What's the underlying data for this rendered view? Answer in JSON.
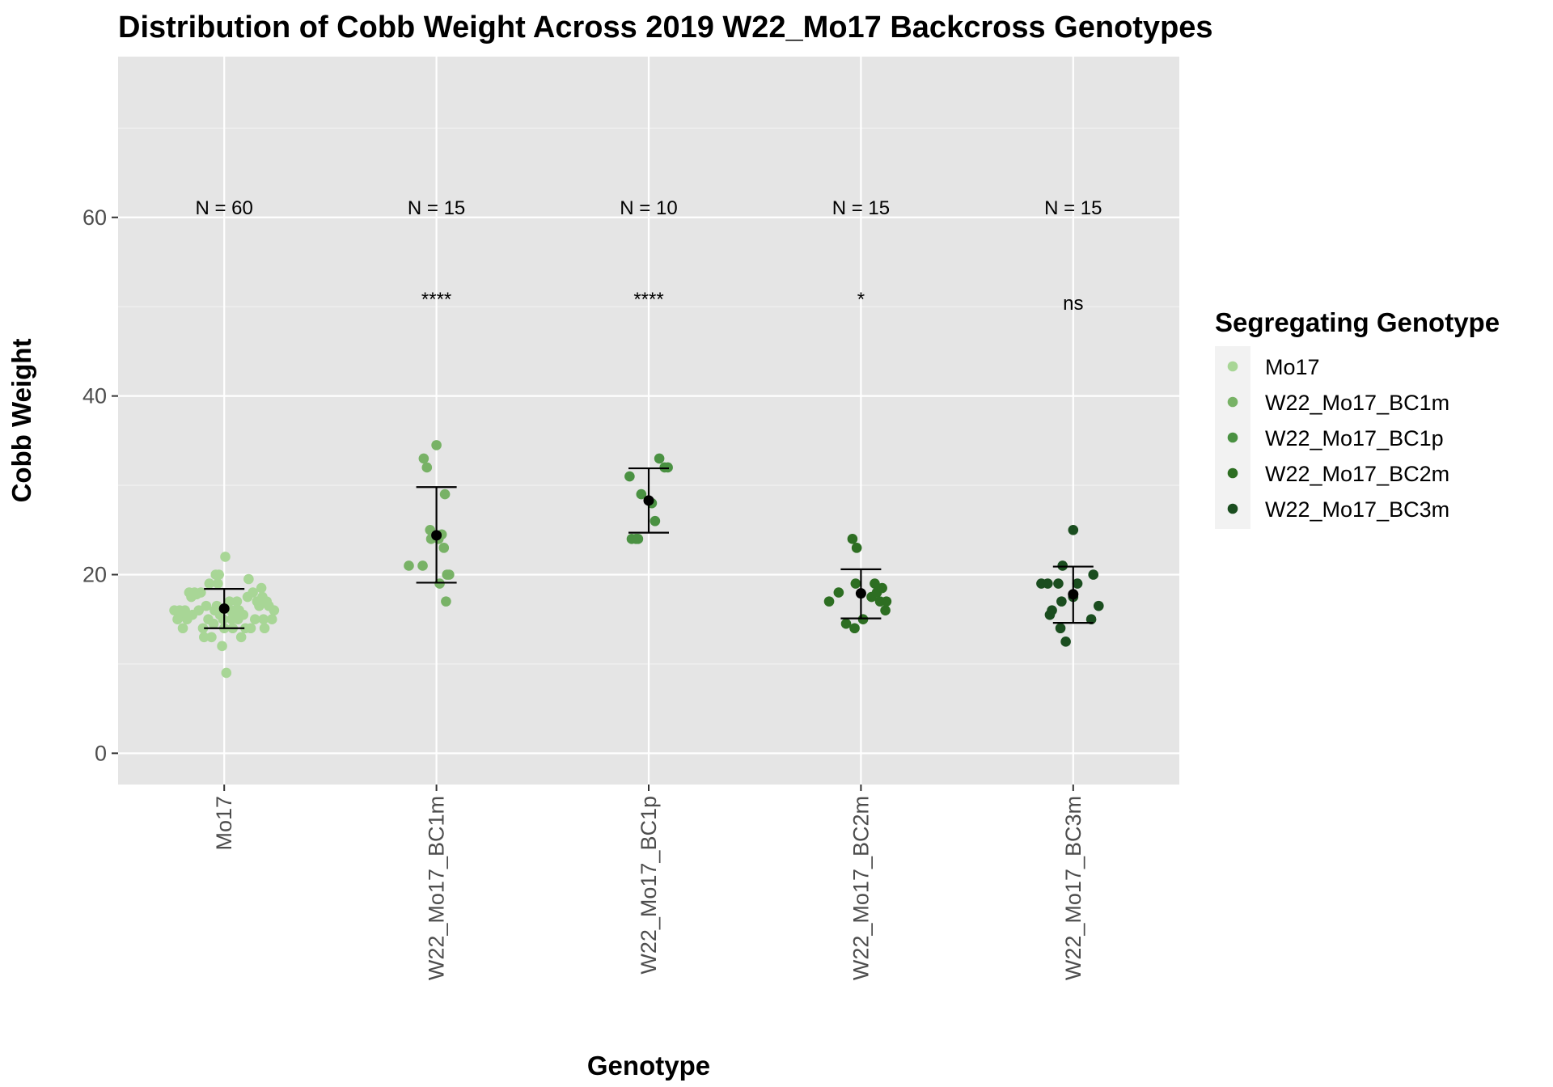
{
  "chart_data": {
    "type": "scatter",
    "title": "Distribution of Cobb Weight Across 2019 W22_Mo17 Backcross Genotypes",
    "xlabel": "Genotype",
    "ylabel": "Cobb Weight",
    "ylim": [
      -3.5,
      78
    ],
    "yticks": [
      0,
      20,
      40,
      60
    ],
    "grid": true,
    "legend": {
      "title": "Segregating Genotype",
      "position": "right",
      "entries": [
        "Mo17",
        "W22_Mo17_BC1m",
        "W22_Mo17_BC1p",
        "W22_Mo17_BC2m",
        "W22_Mo17_BC3m"
      ]
    },
    "categories": [
      "Mo17",
      "W22_Mo17_BC1m",
      "W22_Mo17_BC1p",
      "W22_Mo17_BC2m",
      "W22_Mo17_BC3m"
    ],
    "series": [
      {
        "name": "Mo17",
        "color": "#a8d696",
        "n_label": "N = 60",
        "significance": "",
        "mean": 16.2,
        "error": [
          14.0,
          18.4
        ],
        "points": [
          [
            -0.47,
            16.0
          ],
          [
            -0.44,
            15.0
          ],
          [
            -0.42,
            16.0
          ],
          [
            -0.4,
            15.5
          ],
          [
            -0.39,
            14.0
          ],
          [
            -0.37,
            16.0
          ],
          [
            -0.35,
            15.0
          ],
          [
            -0.33,
            18.0
          ],
          [
            -0.31,
            17.5
          ],
          [
            -0.3,
            15.5
          ],
          [
            -0.28,
            18.0
          ],
          [
            -0.26,
            17.8
          ],
          [
            -0.24,
            16.0
          ],
          [
            -0.22,
            18.0
          ],
          [
            -0.2,
            14.0
          ],
          [
            -0.19,
            13.0
          ],
          [
            -0.17,
            16.5
          ],
          [
            -0.15,
            15.0
          ],
          [
            -0.14,
            19.0
          ],
          [
            -0.12,
            13.0
          ],
          [
            -0.1,
            14.5
          ],
          [
            -0.09,
            16.0
          ],
          [
            -0.08,
            20.0
          ],
          [
            -0.07,
            16.5
          ],
          [
            -0.06,
            19.0
          ],
          [
            -0.05,
            20.0
          ],
          [
            -0.04,
            15.5
          ],
          [
            -0.03,
            16.0
          ],
          [
            -0.02,
            12.0
          ],
          [
            -0.01,
            15.0
          ],
          [
            0.0,
            14.0
          ],
          [
            0.01,
            22.0
          ],
          [
            0.02,
            9.0
          ],
          [
            0.03,
            16.5
          ],
          [
            0.05,
            17.0
          ],
          [
            0.06,
            16.0
          ],
          [
            0.07,
            15.0
          ],
          [
            0.08,
            14.0
          ],
          [
            0.1,
            16.0
          ],
          [
            0.12,
            17.0
          ],
          [
            0.13,
            15.0
          ],
          [
            0.14,
            16.0
          ],
          [
            0.16,
            13.0
          ],
          [
            0.18,
            15.5
          ],
          [
            0.2,
            14.0
          ],
          [
            0.22,
            17.5
          ],
          [
            0.23,
            19.5
          ],
          [
            0.25,
            14.0
          ],
          [
            0.27,
            18.0
          ],
          [
            0.29,
            15.0
          ],
          [
            0.31,
            17.0
          ],
          [
            0.33,
            16.5
          ],
          [
            0.35,
            18.5
          ],
          [
            0.36,
            17.5
          ],
          [
            0.37,
            15.0
          ],
          [
            0.38,
            14.0
          ],
          [
            0.4,
            17.0
          ],
          [
            0.42,
            16.5
          ],
          [
            0.45,
            15.0
          ],
          [
            0.47,
            16.0
          ]
        ]
      },
      {
        "name": "W22_Mo17_BC1m",
        "color": "#78b266",
        "n_label": "N = 15",
        "significance": "****",
        "mean": 24.4,
        "error": [
          19.1,
          29.8
        ],
        "points": [
          [
            -0.26,
            21.0
          ],
          [
            -0.13,
            21.0
          ],
          [
            -0.12,
            33.0
          ],
          [
            -0.09,
            32.0
          ],
          [
            -0.06,
            25.0
          ],
          [
            -0.05,
            24.0
          ],
          [
            0.0,
            34.5
          ],
          [
            0.02,
            24.0
          ],
          [
            0.03,
            19.0
          ],
          [
            0.05,
            24.5
          ],
          [
            0.07,
            23.0
          ],
          [
            0.08,
            29.0
          ],
          [
            0.09,
            17.0
          ],
          [
            0.1,
            20.0
          ],
          [
            0.12,
            20.0
          ]
        ]
      },
      {
        "name": "W22_Mo17_BC1p",
        "color": "#4a9142",
        "n_label": "N = 10",
        "significance": "****",
        "mean": 28.3,
        "error": [
          24.7,
          31.9
        ],
        "points": [
          [
            -0.18,
            31.0
          ],
          [
            -0.16,
            24.0
          ],
          [
            -0.12,
            24.0
          ],
          [
            -0.1,
            24.0
          ],
          [
            -0.07,
            29.0
          ],
          [
            0.03,
            28.0
          ],
          [
            0.06,
            26.0
          ],
          [
            0.1,
            33.0
          ],
          [
            0.15,
            32.0
          ],
          [
            0.18,
            32.0
          ]
        ]
      },
      {
        "name": "W22_Mo17_BC2m",
        "color": "#2d6e22",
        "n_label": "N = 15",
        "significance": "*",
        "mean": 17.9,
        "error": [
          15.1,
          20.6
        ],
        "points": [
          [
            -0.3,
            17.0
          ],
          [
            -0.21,
            18.0
          ],
          [
            -0.14,
            14.5
          ],
          [
            -0.08,
            24.0
          ],
          [
            -0.06,
            14.0
          ],
          [
            -0.05,
            19.0
          ],
          [
            -0.04,
            23.0
          ],
          [
            0.02,
            15.0
          ],
          [
            0.1,
            17.5
          ],
          [
            0.13,
            19.0
          ],
          [
            0.15,
            18.0
          ],
          [
            0.18,
            17.0
          ],
          [
            0.2,
            18.5
          ],
          [
            0.23,
            16.0
          ],
          [
            0.24,
            17.0
          ]
        ]
      },
      {
        "name": "W22_Mo17_BC3m",
        "color": "#1a4d1f",
        "n_label": "N = 15",
        "significance": "ns",
        "mean": 17.8,
        "error": [
          14.6,
          20.9
        ],
        "points": [
          [
            -0.3,
            19.0
          ],
          [
            -0.24,
            19.0
          ],
          [
            -0.22,
            15.5
          ],
          [
            -0.2,
            16.0
          ],
          [
            -0.14,
            19.0
          ],
          [
            -0.12,
            14.0
          ],
          [
            -0.11,
            17.0
          ],
          [
            -0.1,
            21.0
          ],
          [
            -0.07,
            12.5
          ],
          [
            0.0,
            17.5
          ],
          [
            0.0,
            25.0
          ],
          [
            0.04,
            19.0
          ],
          [
            0.17,
            15.0
          ],
          [
            0.19,
            20.0
          ],
          [
            0.24,
            16.5
          ]
        ]
      }
    ]
  }
}
